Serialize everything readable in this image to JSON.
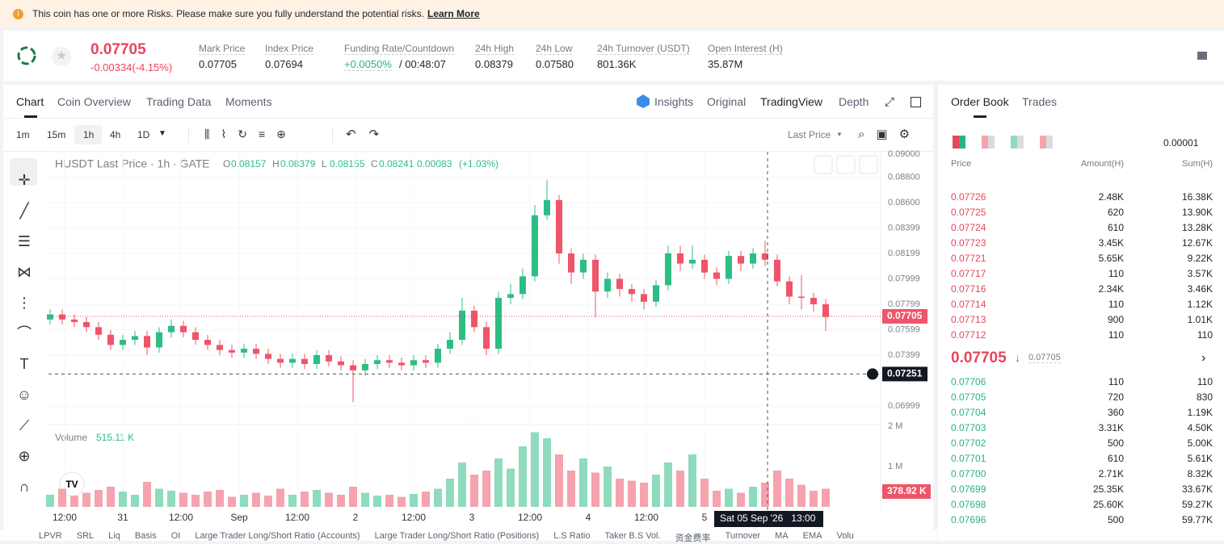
{
  "banner": {
    "text": "This coin has one or more Risks. Please make sure you fully understand the potential risks.",
    "link": "Learn More"
  },
  "ticker": {
    "price": "0.07705",
    "change": "-0.00334(-4.15%)",
    "stats": [
      {
        "label": "Mark Price",
        "value": "0.07705"
      },
      {
        "label": "Index Price",
        "value": "0.07694"
      },
      {
        "label": "Funding Rate/Countdown",
        "value": "+0.0050%",
        "value2": "/ 00:48:07"
      },
      {
        "label": "24h High",
        "value": "0.08379"
      },
      {
        "label": "24h Low",
        "value": "0.07580"
      },
      {
        "label": "24h Turnover (USDT)",
        "value": "801.36K"
      },
      {
        "label": "Open Interest (H)",
        "value": "35.87M"
      }
    ]
  },
  "chart_tabs": [
    "Chart",
    "Coin Overview",
    "Trading Data",
    "Moments"
  ],
  "view_tabs": [
    "Insights",
    "Original",
    "TradingView",
    "Depth"
  ],
  "intervals": [
    "1m",
    "15m",
    "1h",
    "4h",
    "1D"
  ],
  "price_type": "Last Price",
  "chart_data": {
    "type": "candlestick",
    "title": "HUSDT Last Price · 1h · GATE",
    "ohlc_legend": [
      {
        "label": "O",
        "value": "0.08157"
      },
      {
        "label": "H",
        "value": "0.08379"
      },
      {
        "label": "L",
        "value": "0.08155"
      },
      {
        "label": "C",
        "value": "0.08241"
      }
    ],
    "change": "0.00083",
    "change_pct": "(+1.03%)",
    "up_color": "#2ebd85",
    "down_color": "#ef5469",
    "up_volume_color": "#8fdbbd",
    "down_volume_color": "#f5a3ae",
    "ylim": [
      0.0686,
      0.09
    ],
    "yticks": [
      {
        "value": 0.09,
        "label": "0.09000"
      },
      {
        "value": 0.088,
        "label": "0.08800"
      },
      {
        "value": 0.086,
        "label": "0.08600"
      },
      {
        "value": 0.08399,
        "label": "0.08399"
      },
      {
        "value": 0.08199,
        "label": "0.08199"
      },
      {
        "value": 0.07999,
        "label": "0.07999"
      },
      {
        "value": 0.07799,
        "label": "0.07799"
      },
      {
        "value": 0.07599,
        "label": "0.07599"
      },
      {
        "value": 0.07399,
        "label": "0.07399"
      },
      {
        "value": 0.06999,
        "label": "0.06999"
      }
    ],
    "ohlc": [
      [
        0.0768,
        0.0776,
        0.0764,
        0.0772
      ],
      [
        0.0772,
        0.0776,
        0.0764,
        0.0768
      ],
      [
        0.0768,
        0.0772,
        0.0762,
        0.0766
      ],
      [
        0.0766,
        0.077,
        0.0758,
        0.0762
      ],
      [
        0.0762,
        0.0766,
        0.0752,
        0.0756
      ],
      [
        0.0756,
        0.076,
        0.0744,
        0.0748
      ],
      [
        0.0748,
        0.0756,
        0.0744,
        0.0752
      ],
      [
        0.0752,
        0.0759,
        0.0748,
        0.0755
      ],
      [
        0.0755,
        0.0759,
        0.074,
        0.0746
      ],
      [
        0.0746,
        0.0762,
        0.0742,
        0.0758
      ],
      [
        0.0758,
        0.0768,
        0.0754,
        0.0763
      ],
      [
        0.0763,
        0.0767,
        0.0754,
        0.0758
      ],
      [
        0.0758,
        0.0762,
        0.0748,
        0.0752
      ],
      [
        0.0752,
        0.0756,
        0.0744,
        0.0748
      ],
      [
        0.0748,
        0.0752,
        0.074,
        0.0744
      ],
      [
        0.0744,
        0.0748,
        0.0738,
        0.0742
      ],
      [
        0.0742,
        0.0749,
        0.0738,
        0.0745
      ],
      [
        0.0745,
        0.0749,
        0.0737,
        0.0741
      ],
      [
        0.0741,
        0.0745,
        0.0733,
        0.0737
      ],
      [
        0.0737,
        0.0741,
        0.073,
        0.0734
      ],
      [
        0.0734,
        0.0741,
        0.073,
        0.0737
      ],
      [
        0.0737,
        0.0741,
        0.0729,
        0.0733
      ],
      [
        0.0733,
        0.0744,
        0.0729,
        0.074
      ],
      [
        0.074,
        0.0744,
        0.0731,
        0.0735
      ],
      [
        0.0735,
        0.0739,
        0.0728,
        0.0732
      ],
      [
        0.0732,
        0.0736,
        0.0703,
        0.0728
      ],
      [
        0.0728,
        0.0737,
        0.0724,
        0.0733
      ],
      [
        0.0733,
        0.074,
        0.0729,
        0.0736
      ],
      [
        0.0736,
        0.074,
        0.073,
        0.0734
      ],
      [
        0.0734,
        0.0738,
        0.0728,
        0.0732
      ],
      [
        0.0732,
        0.074,
        0.0728,
        0.0736
      ],
      [
        0.0736,
        0.074,
        0.073,
        0.0734
      ],
      [
        0.0734,
        0.0749,
        0.073,
        0.0745
      ],
      [
        0.0745,
        0.0758,
        0.0741,
        0.0752
      ],
      [
        0.0752,
        0.0785,
        0.0748,
        0.0775
      ],
      [
        0.0775,
        0.0779,
        0.0758,
        0.0762
      ],
      [
        0.0762,
        0.0766,
        0.074,
        0.0745
      ],
      [
        0.0745,
        0.079,
        0.0741,
        0.0785
      ],
      [
        0.0785,
        0.0796,
        0.078,
        0.0788
      ],
      [
        0.0788,
        0.0808,
        0.0784,
        0.0802
      ],
      [
        0.0802,
        0.0858,
        0.0798,
        0.085
      ],
      [
        0.085,
        0.0878,
        0.0846,
        0.0862
      ],
      [
        0.0862,
        0.0866,
        0.0812,
        0.082
      ],
      [
        0.082,
        0.0824,
        0.0796,
        0.0805
      ],
      [
        0.0805,
        0.082,
        0.08,
        0.0815
      ],
      [
        0.0815,
        0.0819,
        0.077,
        0.079
      ],
      [
        0.079,
        0.0805,
        0.0785,
        0.08
      ],
      [
        0.08,
        0.0804,
        0.0786,
        0.0792
      ],
      [
        0.0792,
        0.0796,
        0.0782,
        0.0788
      ],
      [
        0.0788,
        0.0792,
        0.0776,
        0.0782
      ],
      [
        0.0782,
        0.0799,
        0.0778,
        0.0795
      ],
      [
        0.0795,
        0.0826,
        0.0791,
        0.082
      ],
      [
        0.082,
        0.0826,
        0.0806,
        0.0812
      ],
      [
        0.0812,
        0.0826,
        0.0808,
        0.0815
      ],
      [
        0.0815,
        0.0819,
        0.08,
        0.0805
      ],
      [
        0.0805,
        0.0809,
        0.0795,
        0.08
      ],
      [
        0.08,
        0.0822,
        0.0796,
        0.0818
      ],
      [
        0.0818,
        0.0822,
        0.0806,
        0.0812
      ],
      [
        0.0812,
        0.0824,
        0.0808,
        0.082
      ],
      [
        0.082,
        0.083,
        0.081,
        0.0815
      ],
      [
        0.0815,
        0.0819,
        0.0794,
        0.0798
      ],
      [
        0.0798,
        0.0802,
        0.078,
        0.0786
      ],
      [
        0.0786,
        0.0803,
        0.0776,
        0.0785
      ],
      [
        0.0785,
        0.0789,
        0.0774,
        0.078
      ],
      [
        0.078,
        0.0784,
        0.0759,
        0.077
      ]
    ],
    "volume_label": "Volume",
    "volume_value": "515.11 K",
    "volumes": [
      300000,
      450000,
      280000,
      350000,
      420000,
      500000,
      380000,
      300000,
      620000,
      450000,
      400000,
      350000,
      300000,
      380000,
      420000,
      250000,
      300000,
      350000,
      280000,
      450000,
      300000,
      380000,
      420000,
      350000,
      300000,
      500000,
      350000,
      280000,
      300000,
      250000,
      320000,
      380000,
      450000,
      700000,
      1100000,
      800000,
      900000,
      1200000,
      950000,
      1500000,
      1850000,
      1700000,
      1300000,
      900000,
      1200000,
      850000,
      1000000,
      700000,
      650000,
      600000,
      800000,
      1100000,
      900000,
      1300000,
      700000,
      400000,
      450000,
      350000,
      500000,
      600000,
      900000,
      700000,
      550000,
      400000,
      450000
    ],
    "vlim": [
      0,
      2000000
    ],
    "vticks": [
      {
        "value": 1000000,
        "label": "1 M"
      },
      {
        "value": 2000000,
        "label": "2 M"
      }
    ],
    "xtick_labels": [
      "12:00",
      "31",
      "12:00",
      "Sep",
      "12:00",
      "2",
      "12:00",
      "3",
      "12:00",
      "4",
      "12:00",
      "5"
    ],
    "crosshair_label": "Sat 05 Sep '26   13:00",
    "last_price": 0.07705,
    "cross_price": 0.07251,
    "cross_volume": "378.92 K"
  },
  "order_book": {
    "tabs": [
      "Order Book",
      "Trades"
    ],
    "precision": "0.00001",
    "headers": [
      "Price",
      "Amount(H)",
      "Sum(H)"
    ],
    "asks": [
      [
        "0.07726",
        "2.48K",
        "16.38K"
      ],
      [
        "0.07725",
        "620",
        "13.90K"
      ],
      [
        "0.07724",
        "610",
        "13.28K"
      ],
      [
        "0.07723",
        "3.45K",
        "12.67K"
      ],
      [
        "0.07721",
        "5.65K",
        "9.22K"
      ],
      [
        "0.07717",
        "110",
        "3.57K"
      ],
      [
        "0.07716",
        "2.34K",
        "3.46K"
      ],
      [
        "0.07714",
        "110",
        "1.12K"
      ],
      [
        "0.07713",
        "900",
        "1.01K"
      ],
      [
        "0.07712",
        "110",
        "110"
      ]
    ],
    "mid": "0.07705",
    "mark": "0.07705",
    "bids": [
      [
        "0.07706",
        "110",
        "110"
      ],
      [
        "0.07705",
        "720",
        "830"
      ],
      [
        "0.07704",
        "360",
        "1.19K"
      ],
      [
        "0.07703",
        "3.31K",
        "4.50K"
      ],
      [
        "0.07702",
        "500",
        "5.00K"
      ],
      [
        "0.07701",
        "610",
        "5.61K"
      ],
      [
        "0.07700",
        "2.71K",
        "8.32K"
      ],
      [
        "0.07699",
        "25.35K",
        "33.67K"
      ],
      [
        "0.07698",
        "25.60K",
        "59.27K"
      ],
      [
        "0.07696",
        "500",
        "59.77K"
      ]
    ]
  },
  "indicators": [
    "LPVR",
    "SRL",
    "Liq",
    "Basis",
    "OI",
    "Large Trader Long/Short Ratio (Accounts)",
    "Large Trader Long/Short Ratio (Positions)",
    "L.S Ratio",
    "Taker B.S Vol.",
    "资金费率",
    "Turnover",
    "MA",
    "EMA",
    "Volu"
  ]
}
